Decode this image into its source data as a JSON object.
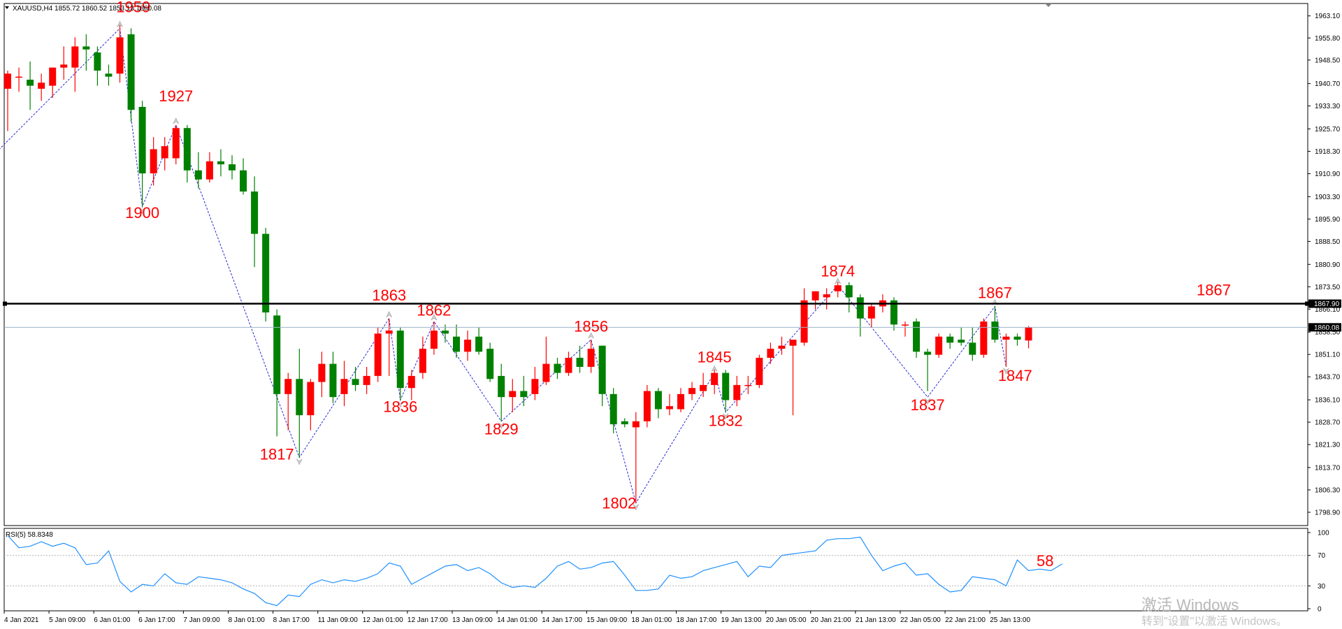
{
  "header": {
    "symbol_info": "XAUUSD,H4  1855.72 1860.52 1853.13 1860.08"
  },
  "rsi": {
    "label": "RSI(5) 58.8348",
    "annotation": "58",
    "levels": [
      30,
      70
    ],
    "ticks": [
      "100",
      "70",
      "30",
      "0"
    ]
  },
  "watermark": {
    "line1": "激活 Windows",
    "line2": "转到\"设置\"以激活 Windows。"
  },
  "chart_data": {
    "type": "candlestick",
    "price_axis": {
      "range": [
        1794.5,
        1967.2
      ],
      "ticks": [
        "1963.10",
        "1955.80",
        "1948.50",
        "1940.70",
        "1933.30",
        "1925.70",
        "1918.30",
        "1910.90",
        "1903.30",
        "1895.90",
        "1888.50",
        "1880.90",
        "1873.50",
        "1866.10",
        "1858.50",
        "1851.10",
        "1843.70",
        "1836.10",
        "1828.70",
        "1821.30",
        "1813.70",
        "1806.30",
        "1798.90"
      ]
    },
    "time_axis_labels": [
      "4 Jan 2021",
      "5 Jan 09:00",
      "6 Jan 01:00",
      "6 Jan 17:00",
      "7 Jan 09:00",
      "8 Jan 01:00",
      "8 Jan 17:00",
      "11 Jan 09:00",
      "12 Jan 01:00",
      "12 Jan 17:00",
      "13 Jan 09:00",
      "14 Jan 01:00",
      "14 Jan 17:00",
      "15 Jan 09:00",
      "18 Jan 01:00",
      "18 Jan 17:00",
      "19 Jan 13:00",
      "20 Jan 05:00",
      "20 Jan 21:00",
      "21 Jan 13:00",
      "22 Jan 05:00",
      "22 Jan 21:00",
      "25 Jan 13:00"
    ],
    "horizontal_line": {
      "value": 1867.9,
      "label": "1867.90",
      "annotation": "1867"
    },
    "current_price": {
      "value": 1860.08,
      "label": "1860.08"
    },
    "candles": [
      {
        "o": 1939,
        "h": 1945,
        "l": 1925,
        "c": 1944
      },
      {
        "o": 1943,
        "h": 1946,
        "l": 1938,
        "c": 1943
      },
      {
        "o": 1942,
        "h": 1948,
        "l": 1932,
        "c": 1940
      },
      {
        "o": 1939,
        "h": 1944,
        "l": 1935,
        "c": 1941
      },
      {
        "o": 1940,
        "h": 1946,
        "l": 1936,
        "c": 1946
      },
      {
        "o": 1946,
        "h": 1953,
        "l": 1942,
        "c": 1947
      },
      {
        "o": 1946,
        "h": 1956,
        "l": 1938,
        "c": 1953
      },
      {
        "o": 1953,
        "h": 1957,
        "l": 1945,
        "c": 1952
      },
      {
        "o": 1951,
        "h": 1953,
        "l": 1940,
        "c": 1945
      },
      {
        "o": 1944,
        "h": 1947,
        "l": 1940,
        "c": 1943
      },
      {
        "o": 1944,
        "h": 1960,
        "l": 1941,
        "c": 1956
      },
      {
        "o": 1957,
        "h": 1959,
        "l": 1928,
        "c": 1932
      },
      {
        "o": 1933,
        "h": 1935,
        "l": 1900,
        "c": 1911
      },
      {
        "o": 1911,
        "h": 1923,
        "l": 1907,
        "c": 1919
      },
      {
        "o": 1916,
        "h": 1923,
        "l": 1912,
        "c": 1920
      },
      {
        "o": 1916,
        "h": 1927,
        "l": 1914,
        "c": 1926
      },
      {
        "o": 1926,
        "h": 1927,
        "l": 1908,
        "c": 1912
      },
      {
        "o": 1912,
        "h": 1918,
        "l": 1906,
        "c": 1909
      },
      {
        "o": 1909,
        "h": 1918,
        "l": 1908,
        "c": 1915
      },
      {
        "o": 1915,
        "h": 1919,
        "l": 1910,
        "c": 1914
      },
      {
        "o": 1914,
        "h": 1917,
        "l": 1909,
        "c": 1912
      },
      {
        "o": 1912,
        "h": 1916,
        "l": 1904,
        "c": 1905
      },
      {
        "o": 1905,
        "h": 1910,
        "l": 1880,
        "c": 1891
      },
      {
        "o": 1891,
        "h": 1893,
        "l": 1862,
        "c": 1865
      },
      {
        "o": 1864,
        "h": 1866,
        "l": 1824,
        "c": 1838
      },
      {
        "o": 1838,
        "h": 1845,
        "l": 1826,
        "c": 1843
      },
      {
        "o": 1843,
        "h": 1853,
        "l": 1817,
        "c": 1831
      },
      {
        "o": 1831,
        "h": 1843,
        "l": 1826,
        "c": 1842
      },
      {
        "o": 1842,
        "h": 1852,
        "l": 1837,
        "c": 1848
      },
      {
        "o": 1848,
        "h": 1852,
        "l": 1835,
        "c": 1837
      },
      {
        "o": 1838,
        "h": 1849,
        "l": 1834,
        "c": 1843
      },
      {
        "o": 1843,
        "h": 1847,
        "l": 1839,
        "c": 1841
      },
      {
        "o": 1841,
        "h": 1847,
        "l": 1838,
        "c": 1844
      },
      {
        "o": 1844,
        "h": 1860,
        "l": 1842,
        "c": 1858
      },
      {
        "o": 1858,
        "h": 1863,
        "l": 1844,
        "c": 1859
      },
      {
        "o": 1859,
        "h": 1860,
        "l": 1836,
        "c": 1840
      },
      {
        "o": 1840,
        "h": 1846,
        "l": 1836,
        "c": 1844
      },
      {
        "o": 1845,
        "h": 1857,
        "l": 1843,
        "c": 1853
      },
      {
        "o": 1853,
        "h": 1862,
        "l": 1851,
        "c": 1859
      },
      {
        "o": 1859,
        "h": 1861,
        "l": 1855,
        "c": 1858
      },
      {
        "o": 1857,
        "h": 1861,
        "l": 1850,
        "c": 1852
      },
      {
        "o": 1852,
        "h": 1859,
        "l": 1849,
        "c": 1856
      },
      {
        "o": 1857,
        "h": 1860,
        "l": 1851,
        "c": 1852
      },
      {
        "o": 1853,
        "h": 1855,
        "l": 1842,
        "c": 1843
      },
      {
        "o": 1844,
        "h": 1848,
        "l": 1829,
        "c": 1837
      },
      {
        "o": 1837,
        "h": 1843,
        "l": 1832,
        "c": 1839
      },
      {
        "o": 1839,
        "h": 1844,
        "l": 1834,
        "c": 1837
      },
      {
        "o": 1838,
        "h": 1847,
        "l": 1836,
        "c": 1843
      },
      {
        "o": 1842,
        "h": 1857,
        "l": 1841,
        "c": 1848
      },
      {
        "o": 1848,
        "h": 1850,
        "l": 1843,
        "c": 1845
      },
      {
        "o": 1845,
        "h": 1852,
        "l": 1844,
        "c": 1850
      },
      {
        "o": 1850,
        "h": 1854,
        "l": 1845,
        "c": 1847
      },
      {
        "o": 1847,
        "h": 1856,
        "l": 1845,
        "c": 1853
      },
      {
        "o": 1854,
        "h": 1854,
        "l": 1834,
        "c": 1838
      },
      {
        "o": 1838,
        "h": 1840,
        "l": 1825,
        "c": 1828
      },
      {
        "o": 1829,
        "h": 1830,
        "l": 1827,
        "c": 1828
      },
      {
        "o": 1827,
        "h": 1832,
        "l": 1802,
        "c": 1829
      },
      {
        "o": 1829,
        "h": 1841,
        "l": 1827,
        "c": 1839
      },
      {
        "o": 1839,
        "h": 1840,
        "l": 1830,
        "c": 1833
      },
      {
        "o": 1833,
        "h": 1838,
        "l": 1831,
        "c": 1834
      },
      {
        "o": 1833,
        "h": 1840,
        "l": 1832,
        "c": 1838
      },
      {
        "o": 1838,
        "h": 1842,
        "l": 1836,
        "c": 1840
      },
      {
        "o": 1839,
        "h": 1845,
        "l": 1837,
        "c": 1841
      },
      {
        "o": 1841,
        "h": 1846,
        "l": 1838,
        "c": 1845
      },
      {
        "o": 1845,
        "h": 1846,
        "l": 1832,
        "c": 1836
      },
      {
        "o": 1836,
        "h": 1844,
        "l": 1834,
        "c": 1841
      },
      {
        "o": 1841,
        "h": 1844,
        "l": 1838,
        "c": 1841
      },
      {
        "o": 1841,
        "h": 1851,
        "l": 1840,
        "c": 1850
      },
      {
        "o": 1850,
        "h": 1855,
        "l": 1848,
        "c": 1853
      },
      {
        "o": 1853,
        "h": 1857,
        "l": 1851,
        "c": 1854
      },
      {
        "o": 1854,
        "h": 1856,
        "l": 1831,
        "c": 1856
      },
      {
        "o": 1855,
        "h": 1873,
        "l": 1854,
        "c": 1869
      },
      {
        "o": 1869,
        "h": 1872,
        "l": 1866,
        "c": 1872
      },
      {
        "o": 1870,
        "h": 1873,
        "l": 1866,
        "c": 1871
      },
      {
        "o": 1872,
        "h": 1875,
        "l": 1870,
        "c": 1874
      },
      {
        "o": 1874,
        "h": 1875,
        "l": 1865,
        "c": 1870
      },
      {
        "o": 1870,
        "h": 1871,
        "l": 1857,
        "c": 1863
      },
      {
        "o": 1863,
        "h": 1868,
        "l": 1860,
        "c": 1867
      },
      {
        "o": 1867,
        "h": 1871,
        "l": 1865,
        "c": 1869
      },
      {
        "o": 1869,
        "h": 1870,
        "l": 1859,
        "c": 1861
      },
      {
        "o": 1861,
        "h": 1862,
        "l": 1857,
        "c": 1861
      },
      {
        "o": 1862,
        "h": 1863,
        "l": 1850,
        "c": 1852
      },
      {
        "o": 1852,
        "h": 1853,
        "l": 1839,
        "c": 1851
      },
      {
        "o": 1851,
        "h": 1858,
        "l": 1850,
        "c": 1857
      },
      {
        "o": 1857,
        "h": 1858,
        "l": 1853,
        "c": 1855
      },
      {
        "o": 1856,
        "h": 1860,
        "l": 1854,
        "c": 1855
      },
      {
        "o": 1855,
        "h": 1860,
        "l": 1849,
        "c": 1851
      },
      {
        "o": 1851,
        "h": 1863,
        "l": 1850,
        "c": 1862
      },
      {
        "o": 1862,
        "h": 1867,
        "l": 1855,
        "c": 1856
      },
      {
        "o": 1856,
        "h": 1858,
        "l": 1847,
        "c": 1857
      },
      {
        "o": 1857,
        "h": 1858,
        "l": 1854,
        "c": 1856
      },
      {
        "o": 1855.72,
        "h": 1860.52,
        "l": 1853.13,
        "c": 1860.08
      }
    ],
    "zigzag": [
      {
        "i": -1,
        "price": 1918
      },
      {
        "i": 10,
        "price": 1959
      },
      {
        "i": 12,
        "price": 1900
      },
      {
        "i": 15,
        "price": 1927
      },
      {
        "i": 26,
        "price": 1817
      },
      {
        "i": 34,
        "price": 1863
      },
      {
        "i": 35,
        "price": 1836
      },
      {
        "i": 38,
        "price": 1862
      },
      {
        "i": 44,
        "price": 1829
      },
      {
        "i": 52,
        "price": 1856
      },
      {
        "i": 56,
        "price": 1802
      },
      {
        "i": 63,
        "price": 1845
      },
      {
        "i": 64,
        "price": 1832
      },
      {
        "i": 74,
        "price": 1874
      },
      {
        "i": 82,
        "price": 1837
      },
      {
        "i": 88,
        "price": 1867
      },
      {
        "i": 89,
        "price": 1847
      }
    ],
    "swing_labels": [
      {
        "text": "1959",
        "i": 11.2,
        "price": 1964.3
      },
      {
        "text": "1927",
        "i": 15.0,
        "price": 1934.8
      },
      {
        "text": "1900",
        "i": 12.0,
        "price": 1896.2
      },
      {
        "text": "1863",
        "i": 34.0,
        "price": 1868.9
      },
      {
        "text": "1862",
        "i": 38.0,
        "price": 1864.0
      },
      {
        "text": "1856",
        "i": 52.0,
        "price": 1858.6
      },
      {
        "text": "1874",
        "i": 74.0,
        "price": 1876.9
      },
      {
        "text": "1867",
        "i": 88.0,
        "price": 1869.8
      },
      {
        "text": "1836",
        "i": 35.0,
        "price": 1832.1
      },
      {
        "text": "1829",
        "i": 44.0,
        "price": 1824.7
      },
      {
        "text": "1832",
        "i": 64.0,
        "price": 1827.5
      },
      {
        "text": "1837",
        "i": 82.0,
        "price": 1832.7
      },
      {
        "text": "1847",
        "i": 89.8,
        "price": 1842.4
      },
      {
        "text": "1817",
        "i": 24.0,
        "price": 1816.4
      },
      {
        "text": "1802",
        "i": 54.5,
        "price": 1800.2
      },
      {
        "text": "1845",
        "i": 63.0,
        "price": 1848.5
      }
    ],
    "rsi_values": [
      96,
      80,
      82,
      88,
      82,
      86,
      80,
      58,
      60,
      76,
      36,
      22,
      32,
      30,
      46,
      34,
      32,
      42,
      40,
      38,
      34,
      26,
      20,
      8,
      4,
      18,
      16,
      32,
      38,
      34,
      38,
      36,
      40,
      46,
      60,
      56,
      32,
      40,
      48,
      56,
      58,
      50,
      54,
      46,
      34,
      28,
      30,
      28,
      40,
      56,
      62,
      52,
      54,
      60,
      62,
      44,
      24,
      24,
      26,
      44,
      40,
      42,
      50,
      54,
      58,
      62,
      42,
      56,
      54,
      70,
      72,
      74,
      76,
      90,
      92,
      92,
      94,
      70,
      50,
      56,
      60,
      44,
      46,
      32,
      22,
      24,
      42,
      40,
      38,
      30,
      64,
      50,
      52,
      50,
      58.8
    ]
  }
}
